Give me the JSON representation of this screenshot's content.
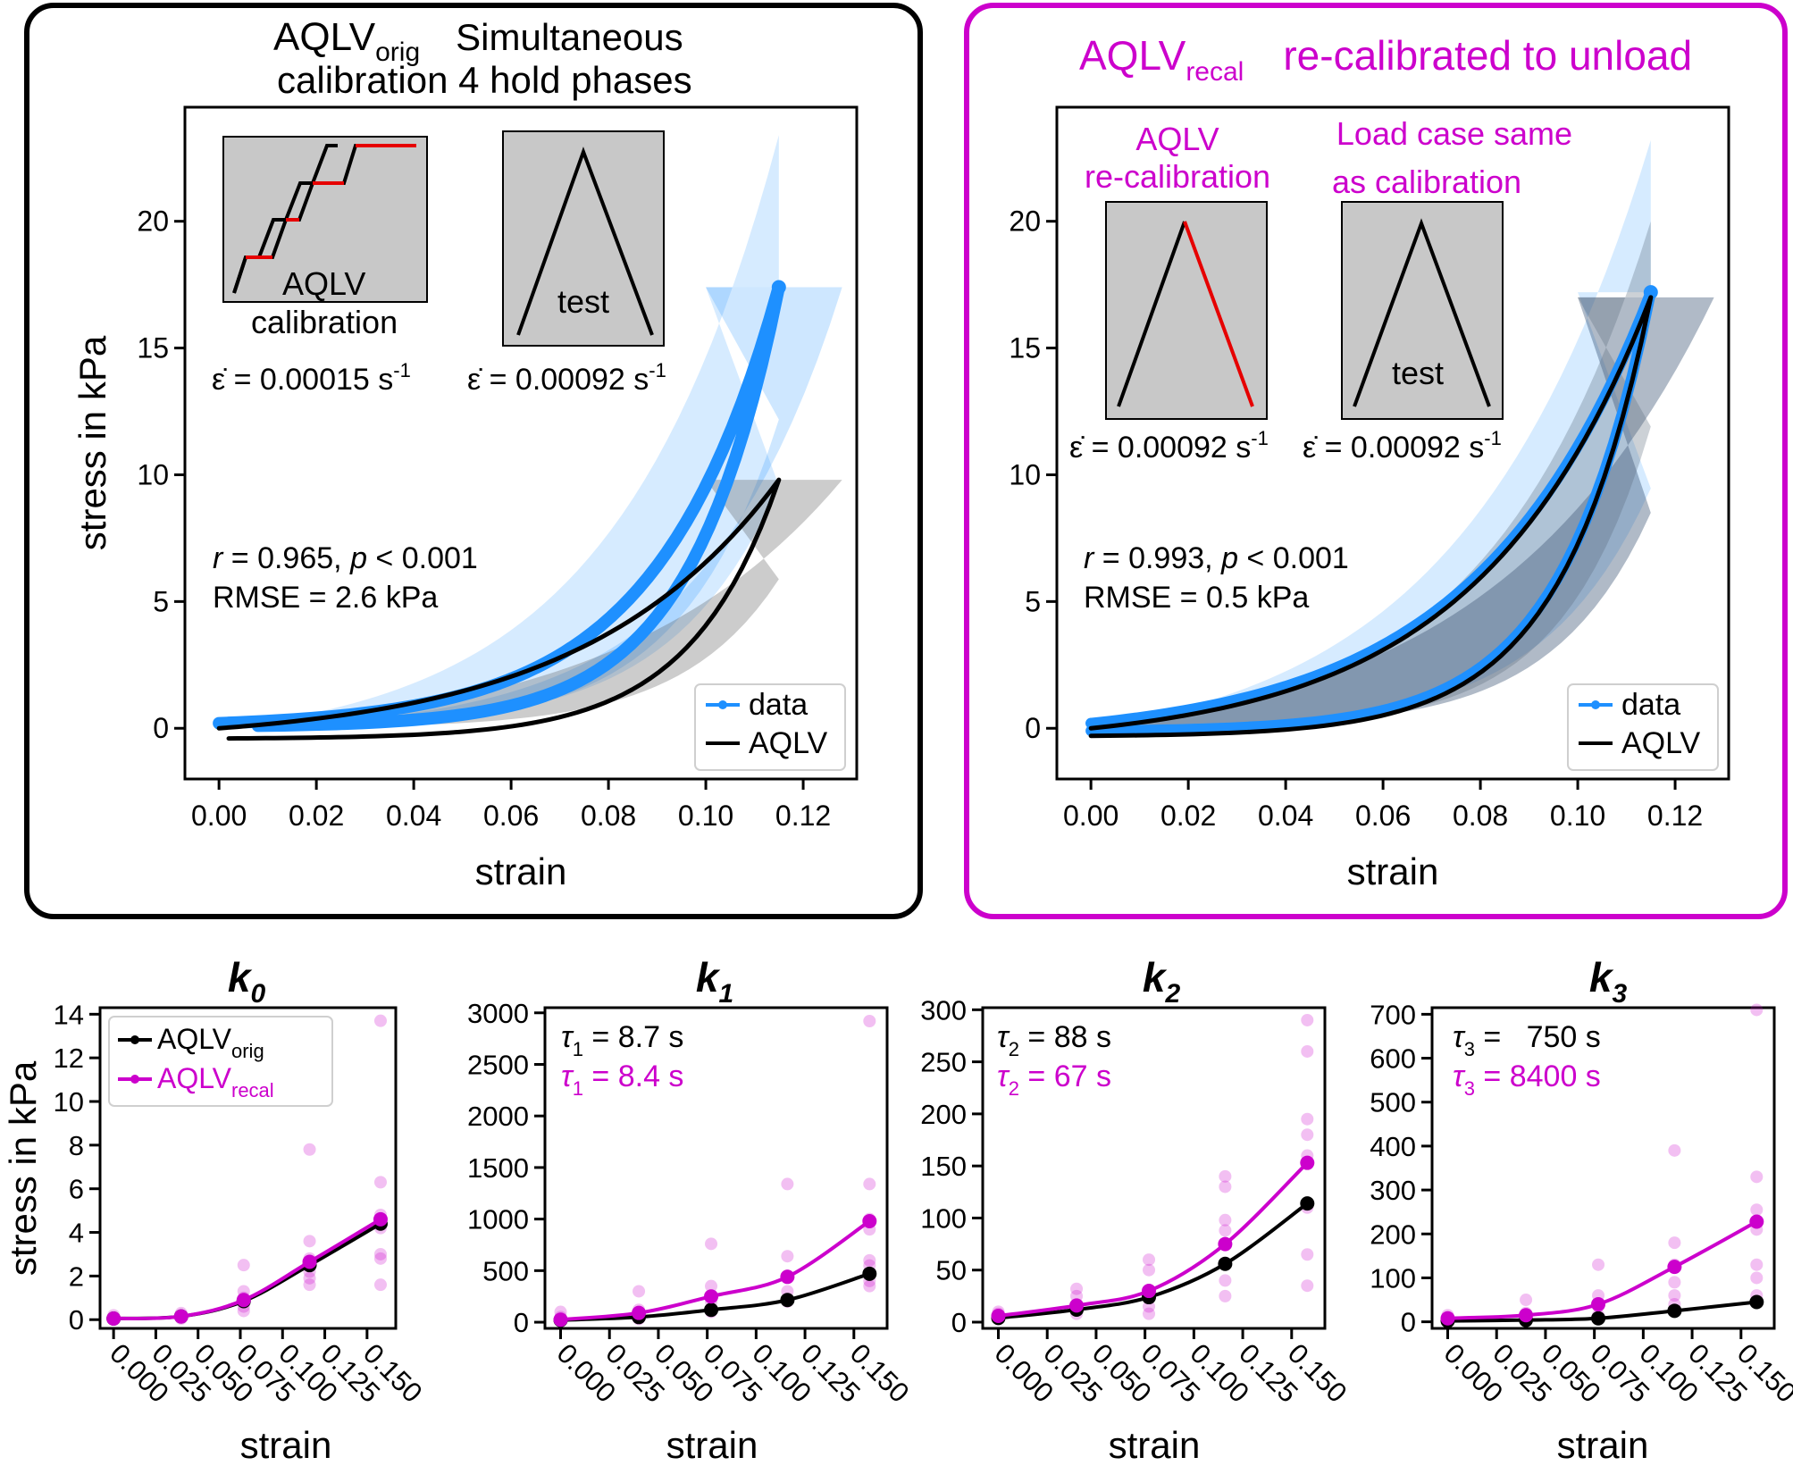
{
  "colors": {
    "data": "#1e90ff",
    "aqlv": "#000000",
    "recal": "#cc00cc",
    "inset_bg": "#c8c8c8",
    "step_highlight": "#e60000"
  },
  "chart_data": [
    {
      "type": "line",
      "panel": "top-left",
      "title_main": "AQLV",
      "title_sub": "orig",
      "title_rest": "Simultaneous",
      "title_line2": "calibration 4 hold phases",
      "xlabel": "strain",
      "ylabel": "stress in kPa",
      "xlim": [
        -0.007,
        0.131
      ],
      "ylim": [
        -2,
        24.5
      ],
      "xticks": [
        0.0,
        0.02,
        0.04,
        0.06,
        0.08,
        0.1,
        0.12
      ],
      "xtick_labels": [
        "0.00",
        "0.02",
        "0.04",
        "0.06",
        "0.08",
        "0.10",
        "0.12"
      ],
      "yticks": [
        0,
        5,
        10,
        15,
        20
      ],
      "ytick_labels": [
        "0",
        "5",
        "10",
        "15",
        "20"
      ],
      "inset_left_label_1": "AQLV",
      "inset_left_label_2": "calibration",
      "inset_right_label": "test",
      "rate_left": "ε̇ = 0.00015 s",
      "rate_left_exp": "-1",
      "rate_right": "ε̇ = 0.00092 s",
      "rate_right_exp": "-1",
      "stat_r": "r",
      "stat_r_rest": " = 0.965, ",
      "stat_p": "p",
      "stat_p_rest": " < 0.001",
      "rmse": "RMSE = 2.6 kPa",
      "legend": [
        "data",
        "AQLV"
      ],
      "series": [
        {
          "name": "data",
          "peak": [
            0.115,
            17.4
          ],
          "load_exp_k": 40,
          "unload_end": [
            0.008,
            0.1
          ],
          "unload_exp_k": 55
        },
        {
          "name": "AQLV",
          "peak": [
            0.115,
            9.8
          ],
          "load_exp_k": 25,
          "unload_end": [
            0.002,
            -0.4
          ],
          "unload_exp_k": 55
        }
      ]
    },
    {
      "type": "line",
      "panel": "top-right",
      "title_main": "AQLV",
      "title_sub": "recal",
      "title_rest": "re-calibrated to unload",
      "xlabel": "strain",
      "xlim": [
        -0.007,
        0.131
      ],
      "ylim": [
        -2,
        24.5
      ],
      "xticks": [
        0.0,
        0.02,
        0.04,
        0.06,
        0.08,
        0.1,
        0.12
      ],
      "xtick_labels": [
        "0.00",
        "0.02",
        "0.04",
        "0.06",
        "0.08",
        "0.10",
        "0.12"
      ],
      "yticks": [
        0,
        5,
        10,
        15,
        20
      ],
      "ytick_labels": [
        "0",
        "5",
        "10",
        "15",
        "20"
      ],
      "inset_left_title_1": "AQLV",
      "inset_left_title_2": "re-calibration",
      "inset_right_title_1": "Load case same",
      "inset_right_title_2": "as calibration",
      "inset_right_label": "test",
      "rate_left": "ε̇ = 0.00092 s",
      "rate_left_exp": "-1",
      "rate_right": "ε̇ = 0.00092 s",
      "rate_right_exp": "-1",
      "stat_r": "r",
      "stat_r_rest": " = 0.993, ",
      "stat_p": "p",
      "stat_p_rest": " < 0.001",
      "rmse": "RMSE = 0.5 kPa",
      "legend": [
        "data",
        "AQLV"
      ],
      "series": [
        {
          "name": "data",
          "peak": [
            0.115,
            17.2
          ],
          "load_exp_k": 28,
          "unload_end": [
            0.0,
            -0.1
          ],
          "unload_exp_k": 55
        },
        {
          "name": "AQLV",
          "peak": [
            0.115,
            17.0
          ],
          "load_exp_k": 28,
          "unload_end": [
            0.0,
            -0.3
          ],
          "unload_exp_k": 55
        }
      ]
    },
    {
      "type": "scatter",
      "panel": "k0",
      "title": "k",
      "title_sub": "0",
      "xlabel": "strain",
      "ylabel": "stress in kPa",
      "xlim": [
        -0.008,
        0.167
      ],
      "ylim": [
        -0.4,
        14.3
      ],
      "xticks": [
        0.0,
        0.025,
        0.05,
        0.075,
        0.1,
        0.125,
        0.15
      ],
      "xtick_labels": [
        "0.000",
        "0.025",
        "0.050",
        "0.075",
        "0.100",
        "0.125",
        "0.150"
      ],
      "yticks": [
        0,
        2,
        4,
        6,
        8,
        10,
        12,
        14
      ],
      "ytick_labels": [
        "0",
        "2",
        "4",
        "6",
        "8",
        "10",
        "12",
        "14"
      ],
      "legend": [
        {
          "main": "AQLV",
          "sub": "orig"
        },
        {
          "main": "AQLV",
          "sub": "recal"
        }
      ],
      "x": [
        0.0,
        0.04,
        0.077,
        0.116,
        0.158
      ],
      "series": [
        {
          "name": "AQLVorig",
          "values": [
            0.05,
            0.15,
            0.85,
            2.5,
            4.4
          ]
        },
        {
          "name": "AQLVrecal",
          "values": [
            0.05,
            0.15,
            0.9,
            2.65,
            4.6
          ]
        }
      ],
      "scatter": [
        [
          0.0,
          0.0
        ],
        [
          0.0,
          0.1
        ],
        [
          0.0,
          0.05
        ],
        [
          0.0,
          0.2
        ],
        [
          0.04,
          0.1
        ],
        [
          0.04,
          0.3
        ],
        [
          0.04,
          0.15
        ],
        [
          0.04,
          0.05
        ],
        [
          0.077,
          2.5
        ],
        [
          0.077,
          1.3
        ],
        [
          0.077,
          0.6
        ],
        [
          0.077,
          0.4
        ],
        [
          0.077,
          1.0
        ],
        [
          0.116,
          7.8
        ],
        [
          0.116,
          3.6
        ],
        [
          0.116,
          2.8
        ],
        [
          0.116,
          2.2
        ],
        [
          0.116,
          1.6
        ],
        [
          0.116,
          1.9
        ],
        [
          0.158,
          13.7
        ],
        [
          0.158,
          6.3
        ],
        [
          0.158,
          4.8
        ],
        [
          0.158,
          3.0
        ],
        [
          0.158,
          2.8
        ],
        [
          0.158,
          1.6
        ],
        [
          0.158,
          4.2
        ]
      ]
    },
    {
      "type": "scatter",
      "panel": "k1",
      "title": "k",
      "title_sub": "1",
      "xlabel": "strain",
      "xlim": [
        -0.008,
        0.167
      ],
      "ylim": [
        -60,
        3050
      ],
      "xticks": [
        0.0,
        0.025,
        0.05,
        0.075,
        0.1,
        0.125,
        0.15
      ],
      "xtick_labels": [
        "0.000",
        "0.025",
        "0.050",
        "0.075",
        "0.100",
        "0.125",
        "0.150"
      ],
      "yticks": [
        0,
        500,
        1000,
        1500,
        2000,
        2500,
        3000
      ],
      "ytick_labels": [
        "0",
        "500",
        "1000",
        "1500",
        "2000",
        "2500",
        "3000"
      ],
      "tau_black": "τ",
      "tau_black_sub": "1",
      "tau_black_rest": " = 8.7 s",
      "tau_recal": "τ",
      "tau_recal_sub": "1",
      "tau_recal_rest": " = 8.4 s",
      "x": [
        0.0,
        0.04,
        0.077,
        0.116,
        0.158
      ],
      "series": [
        {
          "name": "AQLVorig",
          "values": [
            20,
            50,
            120,
            215,
            470
          ]
        },
        {
          "name": "AQLVrecal",
          "values": [
            25,
            90,
            250,
            440,
            980
          ]
        }
      ],
      "scatter": [
        [
          0.0,
          50
        ],
        [
          0.0,
          100
        ],
        [
          0.0,
          20
        ],
        [
          0.0,
          10
        ],
        [
          0.04,
          300
        ],
        [
          0.04,
          120
        ],
        [
          0.04,
          60
        ],
        [
          0.04,
          30
        ],
        [
          0.077,
          760
        ],
        [
          0.077,
          350
        ],
        [
          0.077,
          200
        ],
        [
          0.077,
          100
        ],
        [
          0.116,
          1340
        ],
        [
          0.116,
          640
        ],
        [
          0.116,
          450
        ],
        [
          0.116,
          300
        ],
        [
          0.116,
          200
        ],
        [
          0.158,
          2920
        ],
        [
          0.158,
          1340
        ],
        [
          0.158,
          1000
        ],
        [
          0.158,
          900
        ],
        [
          0.158,
          600
        ],
        [
          0.158,
          550
        ],
        [
          0.158,
          400
        ],
        [
          0.158,
          350
        ]
      ]
    },
    {
      "type": "scatter",
      "panel": "k2",
      "title": "k",
      "title_sub": "2",
      "xlabel": "strain",
      "xlim": [
        -0.008,
        0.167
      ],
      "ylim": [
        -6,
        302
      ],
      "xticks": [
        0.0,
        0.025,
        0.05,
        0.075,
        0.1,
        0.125,
        0.15
      ],
      "xtick_labels": [
        "0.000",
        "0.025",
        "0.050",
        "0.075",
        "0.100",
        "0.125",
        "0.150"
      ],
      "yticks": [
        0,
        50,
        100,
        150,
        200,
        250,
        300
      ],
      "ytick_labels": [
        "0",
        "50",
        "100",
        "150",
        "200",
        "250",
        "300"
      ],
      "tau_black": "τ",
      "tau_black_sub": "2",
      "tau_black_rest": " = 88 s",
      "tau_recal": "τ",
      "tau_recal_sub": "2",
      "tau_recal_rest": " = 67 s",
      "x": [
        0.0,
        0.04,
        0.077,
        0.116,
        0.158
      ],
      "series": [
        {
          "name": "AQLVorig",
          "values": [
            4,
            12,
            24,
            56,
            114
          ]
        },
        {
          "name": "AQLVrecal",
          "values": [
            6,
            16,
            30,
            75,
            153
          ]
        }
      ],
      "scatter": [
        [
          0.0,
          10
        ],
        [
          0.0,
          5
        ],
        [
          0.0,
          3
        ],
        [
          0.0,
          8
        ],
        [
          0.04,
          32
        ],
        [
          0.04,
          25
        ],
        [
          0.04,
          15
        ],
        [
          0.04,
          8
        ],
        [
          0.077,
          60
        ],
        [
          0.077,
          50
        ],
        [
          0.077,
          30
        ],
        [
          0.077,
          15
        ],
        [
          0.077,
          8
        ],
        [
          0.116,
          140
        ],
        [
          0.116,
          130
        ],
        [
          0.116,
          98
        ],
        [
          0.116,
          88
        ],
        [
          0.116,
          40
        ],
        [
          0.116,
          25
        ],
        [
          0.158,
          290
        ],
        [
          0.158,
          260
        ],
        [
          0.158,
          195
        ],
        [
          0.158,
          180
        ],
        [
          0.158,
          160
        ],
        [
          0.158,
          110
        ],
        [
          0.158,
          65
        ],
        [
          0.158,
          35
        ]
      ]
    },
    {
      "type": "scatter",
      "panel": "k3",
      "title": "k",
      "title_sub": "3",
      "xlabel": "strain",
      "xlim": [
        -0.008,
        0.167
      ],
      "ylim": [
        -15,
        715
      ],
      "xticks": [
        0.0,
        0.025,
        0.05,
        0.075,
        0.1,
        0.125,
        0.15
      ],
      "xtick_labels": [
        "0.000",
        "0.025",
        "0.050",
        "0.075",
        "0.100",
        "0.125",
        "0.150"
      ],
      "yticks": [
        0,
        100,
        200,
        300,
        400,
        500,
        600,
        700
      ],
      "ytick_labels": [
        "0",
        "100",
        "200",
        "300",
        "400",
        "500",
        "600",
        "700"
      ],
      "tau_black": "τ",
      "tau_black_sub": "3",
      "tau_black_rest": " =   750 s",
      "tau_recal": "τ",
      "tau_recal_sub": "3",
      "tau_recal_rest": " = 8400 s",
      "x": [
        0.0,
        0.04,
        0.077,
        0.116,
        0.158
      ],
      "series": [
        {
          "name": "AQLVorig",
          "values": [
            2,
            4,
            8,
            25,
            45
          ]
        },
        {
          "name": "AQLVrecal",
          "values": [
            8,
            15,
            40,
            125,
            228
          ]
        }
      ],
      "scatter": [
        [
          0.0,
          15
        ],
        [
          0.0,
          8
        ],
        [
          0.0,
          3
        ],
        [
          0.0,
          10
        ],
        [
          0.04,
          50
        ],
        [
          0.04,
          20
        ],
        [
          0.04,
          10
        ],
        [
          0.04,
          5
        ],
        [
          0.077,
          130
        ],
        [
          0.077,
          60
        ],
        [
          0.077,
          35
        ],
        [
          0.077,
          15
        ],
        [
          0.116,
          390
        ],
        [
          0.116,
          180
        ],
        [
          0.116,
          130
        ],
        [
          0.116,
          90
        ],
        [
          0.116,
          60
        ],
        [
          0.116,
          40
        ],
        [
          0.158,
          710
        ],
        [
          0.158,
          330
        ],
        [
          0.158,
          255
        ],
        [
          0.158,
          210
        ],
        [
          0.158,
          130
        ],
        [
          0.158,
          100
        ],
        [
          0.158,
          60
        ]
      ]
    }
  ]
}
